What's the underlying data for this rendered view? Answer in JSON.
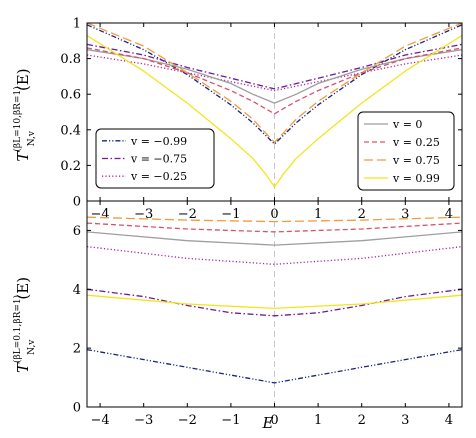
{
  "chart_data": [
    {
      "type": "line",
      "panel": "top",
      "ylabel": {
        "main": "T",
        "sub": "N,v",
        "sup": "(βL=10,βR=1)",
        "arg": "(E)"
      },
      "xlim": [
        -4.3,
        4.3
      ],
      "ylim": [
        0,
        1
      ],
      "xticks": [
        -4,
        -3,
        -2,
        -1,
        0,
        1,
        2,
        3,
        4
      ],
      "xtick_labels": [
        "−4",
        "−3",
        "−2",
        "−1",
        "0",
        "1",
        "2",
        "3",
        "4"
      ],
      "yticks": [
        0,
        0.2,
        0.4,
        0.6,
        0.8,
        1
      ],
      "ytick_labels": [
        "0",
        "0.2",
        "0.4",
        "0.6",
        "0.8",
        "1"
      ],
      "grid": false,
      "vline_x": 0,
      "legends": [
        {
          "placement": "lower-left",
          "entries": [
            {
              "label": "v = −0.99",
              "series": 0
            },
            {
              "label": "v = −0.75",
              "series": 1
            },
            {
              "label": "v = −0.25",
              "series": 2
            }
          ]
        },
        {
          "placement": "lower-right",
          "entries": [
            {
              "label": "v = 0",
              "series": 3
            },
            {
              "label": "v = 0.25",
              "series": 4
            },
            {
              "label": "v = 0.75",
              "series": 5
            },
            {
              "label": "v = 0.99",
              "series": 6
            }
          ]
        }
      ],
      "series": [
        {
          "v": -0.99,
          "color": "#1a237e",
          "dash": "dashdotdot",
          "x": [
            -4.3,
            -3,
            -2,
            -1,
            -0.5,
            0,
            0.5,
            1,
            2,
            3,
            4.3
          ],
          "y": [
            0.99,
            0.85,
            0.71,
            0.54,
            0.44,
            0.32,
            0.44,
            0.54,
            0.71,
            0.85,
            0.99
          ]
        },
        {
          "v": -0.75,
          "color": "#6a1b9a",
          "dash": "dashdot",
          "x": [
            -4.3,
            -3,
            -2,
            -1,
            0,
            1,
            2,
            3,
            4.3
          ],
          "y": [
            0.88,
            0.82,
            0.75,
            0.69,
            0.63,
            0.69,
            0.75,
            0.82,
            0.88
          ]
        },
        {
          "v": -0.25,
          "color": "#b0209c",
          "dash": "dotted",
          "x": [
            -4.3,
            -3,
            -2,
            -1,
            0,
            1,
            2,
            3,
            4.3
          ],
          "y": [
            0.82,
            0.77,
            0.72,
            0.67,
            0.62,
            0.67,
            0.72,
            0.77,
            0.82
          ]
        },
        {
          "v": 0,
          "color": "#9e9e9e",
          "dash": "solid",
          "x": [
            -4.3,
            -3,
            -2,
            -1,
            -0.5,
            0,
            0.5,
            1,
            2,
            3,
            4.3
          ],
          "y": [
            0.85,
            0.8,
            0.74,
            0.66,
            0.6,
            0.55,
            0.6,
            0.66,
            0.74,
            0.8,
            0.85
          ]
        },
        {
          "v": 0.25,
          "color": "#d9506a",
          "dash": "dashed",
          "x": [
            -4.3,
            -3,
            -2,
            -1,
            -0.5,
            0,
            0.5,
            1,
            2,
            3,
            4.3
          ],
          "y": [
            0.86,
            0.8,
            0.72,
            0.62,
            0.56,
            0.49,
            0.56,
            0.62,
            0.72,
            0.8,
            0.86
          ]
        },
        {
          "v": 0.75,
          "color": "#f29b3c",
          "dash": "longdash",
          "x": [
            -4.3,
            -3,
            -2,
            -1,
            -0.5,
            0,
            0.5,
            1,
            2,
            3,
            4.3
          ],
          "y": [
            1.0,
            0.87,
            0.72,
            0.56,
            0.46,
            0.33,
            0.46,
            0.56,
            0.72,
            0.87,
            1.0
          ]
        },
        {
          "v": 0.99,
          "color": "#f2e51c",
          "dash": "solid",
          "x": [
            -4.3,
            -3,
            -2,
            -1,
            -0.5,
            -0.2,
            0,
            0.2,
            0.5,
            1,
            2,
            3,
            4.3
          ],
          "y": [
            0.93,
            0.73,
            0.55,
            0.35,
            0.24,
            0.15,
            0.08,
            0.15,
            0.24,
            0.35,
            0.55,
            0.73,
            0.93
          ]
        }
      ]
    },
    {
      "type": "line",
      "panel": "bottom",
      "xlabel": "E",
      "ylabel": {
        "main": "T",
        "sub": "N,v",
        "sup": "(βL=0.1,βR=1)",
        "arg": "(E)"
      },
      "xlim": [
        -4.3,
        4.3
      ],
      "ylim": [
        0,
        7
      ],
      "xticks": [
        -4,
        -3,
        -2,
        -1,
        0,
        1,
        2,
        3,
        4
      ],
      "xtick_labels": [
        "−4",
        "−3",
        "−2",
        "−1",
        "0",
        "1",
        "2",
        "3",
        "4"
      ],
      "yticks": [
        0,
        2,
        4,
        6
      ],
      "ytick_labels": [
        "0",
        "2",
        "4",
        "6"
      ],
      "grid": false,
      "vline_x": 0,
      "series": [
        {
          "v": -0.99,
          "color": "#1a237e",
          "dash": "dashdotdot",
          "x": [
            -4.3,
            -2,
            0,
            2,
            4.3
          ],
          "y": [
            1.95,
            1.35,
            0.82,
            1.35,
            1.95
          ]
        },
        {
          "v": -0.75,
          "color": "#6a1b9a",
          "dash": "dashdot",
          "x": [
            -4.3,
            -3,
            -2,
            -1,
            0,
            1,
            2,
            3,
            4.3
          ],
          "y": [
            4.0,
            3.75,
            3.45,
            3.2,
            3.1,
            3.2,
            3.45,
            3.75,
            4.0
          ]
        },
        {
          "v": -0.25,
          "color": "#b0209c",
          "dash": "dotted",
          "x": [
            -4.3,
            -2,
            0,
            2,
            4.3
          ],
          "y": [
            5.45,
            5.05,
            4.85,
            5.05,
            5.45
          ]
        },
        {
          "v": 0,
          "color": "#9e9e9e",
          "dash": "solid",
          "x": [
            -4.3,
            -2,
            0,
            2,
            4.3
          ],
          "y": [
            5.95,
            5.65,
            5.5,
            5.65,
            5.95
          ]
        },
        {
          "v": 0.25,
          "color": "#d9506a",
          "dash": "dashed",
          "x": [
            -4.3,
            -2,
            0,
            2,
            4.3
          ],
          "y": [
            6.25,
            6.05,
            5.95,
            6.05,
            6.25
          ]
        },
        {
          "v": 0.75,
          "color": "#f29b3c",
          "dash": "longdash",
          "x": [
            -4.3,
            -2,
            0,
            2,
            4.3
          ],
          "y": [
            6.45,
            6.35,
            6.3,
            6.35,
            6.45
          ]
        },
        {
          "v": 0.99,
          "color": "#f2e51c",
          "dash": "solid",
          "x": [
            -4.3,
            -2,
            0,
            2,
            4.3
          ],
          "y": [
            3.8,
            3.5,
            3.35,
            3.5,
            3.8
          ]
        }
      ]
    }
  ]
}
